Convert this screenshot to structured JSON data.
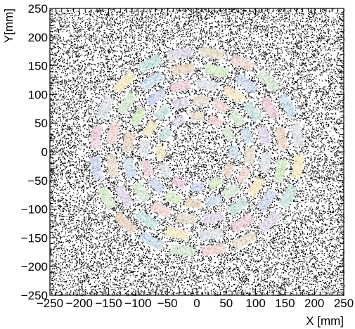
{
  "chart_data": {
    "type": "scatter",
    "xlabel": "X [mm]",
    "ylabel": "Y[mm]",
    "xlim": [
      -250,
      250
    ],
    "ylim": [
      -250,
      250
    ],
    "x_ticks": [
      "−250",
      "−200",
      "−150",
      "−100",
      "−50",
      "0",
      "50",
      "100",
      "150",
      "200",
      "250"
    ],
    "y_ticks": [
      "−250",
      "−200",
      "−150",
      "−100",
      "−50",
      "0",
      "50",
      "100",
      "150",
      "200",
      "250"
    ],
    "grid": false,
    "background_points": {
      "color": "#000000",
      "description_count_estimate": 9000
    },
    "rings": [
      {
        "name": "ring-1",
        "radius": 62,
        "segments": 12,
        "depth": 14,
        "arc_deg": 20
      },
      {
        "name": "ring-2",
        "radius": 90,
        "segments": 16,
        "depth": 15,
        "arc_deg": 17
      },
      {
        "name": "ring-3",
        "radius": 118,
        "segments": 16,
        "depth": 16,
        "arc_deg": 16
      },
      {
        "name": "ring-4",
        "radius": 146,
        "segments": 16,
        "depth": 16,
        "arc_deg": 15
      },
      {
        "name": "ring-5",
        "radius": 174,
        "segments": 20,
        "depth": 16,
        "arc_deg": 13
      }
    ],
    "segment_palette": [
      "#a8c4e0",
      "#b7d9b0",
      "#e8b6b0",
      "#d6c7a8",
      "#c9b8d8",
      "#9fd0c8",
      "#f0d89a",
      "#c8d0d8",
      "#e0a8c0",
      "#a8b8e8",
      "#b8e0a0",
      "#d8b898"
    ],
    "segment_point_color": "#ffffff"
  }
}
